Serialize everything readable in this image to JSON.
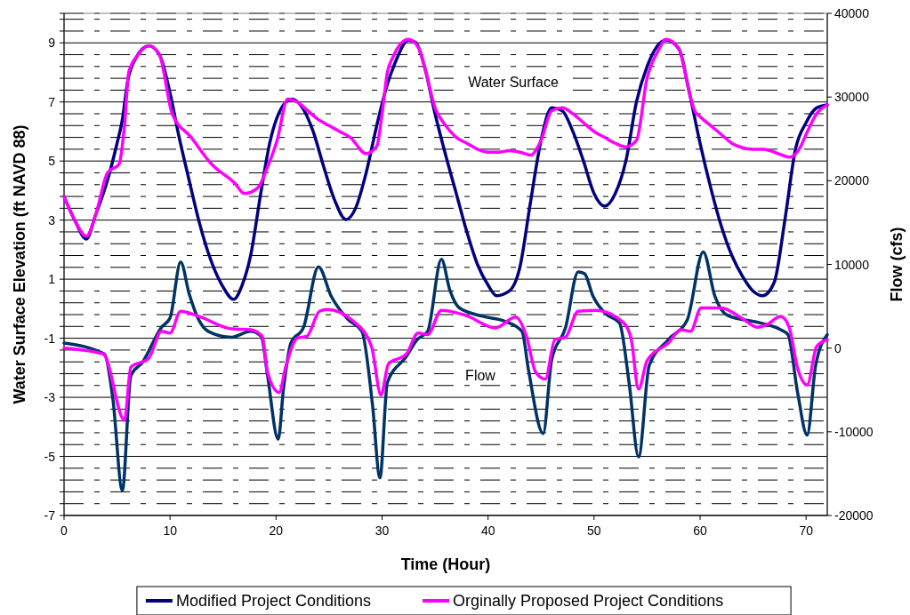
{
  "chart_data": {
    "type": "line",
    "xlabel": "Time (Hour)",
    "ylabel": "Water Surface Elevation (ft NAVD 88)",
    "y2label": "Flow (cfs)",
    "xlim": [
      0,
      72
    ],
    "xticks": [
      0,
      10,
      20,
      30,
      40,
      50,
      60,
      70
    ],
    "ylim": [
      -7,
      10
    ],
    "yticks": [
      -7,
      {
        "value": -6.6,
        "label": null
      },
      {
        "value": -6.2,
        "label": null
      },
      {
        "value": -5.8,
        "label": null
      },
      {
        "value": -5.4,
        "label": null
      },
      -5,
      {
        "value": -4.6,
        "label": null
      },
      {
        "value": -4.2,
        "label": null
      },
      {
        "value": -3.8,
        "label": null
      },
      {
        "value": -3.4,
        "label": null
      },
      -3,
      {
        "value": -2.6,
        "label": null
      },
      {
        "value": -2.2,
        "label": null
      },
      {
        "value": -1.8,
        "label": null
      },
      {
        "value": -1.4,
        "label": null
      },
      -1,
      {
        "value": -0.6,
        "label": null
      },
      {
        "value": -0.2,
        "label": null
      },
      {
        "value": 0.2,
        "label": null
      },
      {
        "value": 0.6,
        "label": null
      },
      1,
      {
        "value": 1.4,
        "label": null
      },
      {
        "value": 1.8,
        "label": null
      },
      {
        "value": 2.2,
        "label": null
      },
      {
        "value": 2.6,
        "label": null
      },
      3,
      {
        "value": 3.4,
        "label": null
      },
      {
        "value": 3.8,
        "label": null
      },
      {
        "value": 4.2,
        "label": null
      },
      {
        "value": 4.6,
        "label": null
      },
      5,
      {
        "value": 5.4,
        "label": null
      },
      {
        "value": 5.8,
        "label": null
      },
      {
        "value": 6.2,
        "label": null
      },
      {
        "value": 6.6,
        "label": null
      },
      7,
      {
        "value": 7.4,
        "label": null
      },
      {
        "value": 7.8,
        "label": null
      },
      {
        "value": 8.2,
        "label": null
      },
      {
        "value": 8.6,
        "label": null
      },
      9,
      {
        "value": 9.4,
        "label": null
      },
      {
        "value": 9.8,
        "label": null
      },
      {
        "value": 10,
        "label": null
      }
    ],
    "y2lim": [
      -20000,
      40000
    ],
    "y2ticks": [
      -20000,
      -10000,
      0,
      10000,
      20000,
      30000,
      40000
    ],
    "grid": "y",
    "legend": "bottom",
    "line_style": "solid",
    "marker": "none",
    "annotations": [
      "Water Surface",
      "Flow"
    ],
    "series": [
      {
        "name": "Modified Project Conditions",
        "color": "#000080",
        "x": [
          0,
          1,
          2.1,
          3,
          4.1,
          5,
          5.5,
          6,
          6.8,
          8,
          9,
          10,
          10.8,
          11.8,
          12.7,
          13.6,
          14.9,
          16,
          16.8,
          17.6,
          18.6,
          19.4,
          20.7,
          21.5,
          22.5,
          23.5,
          24.5,
          25.5,
          26.6,
          27.5,
          28.5,
          29.5,
          30.5,
          31.2,
          32.5,
          33.2,
          34,
          35,
          36,
          37,
          38,
          39,
          40,
          40.8,
          42,
          43,
          44,
          45,
          46,
          47,
          48,
          49,
          50,
          51,
          52,
          53,
          54,
          55,
          56.8,
          58,
          59,
          60,
          61,
          62,
          63,
          64,
          65,
          65.9,
          67,
          68,
          69,
          70,
          71,
          72
        ],
        "values": [
          3.8,
          3.0,
          2.36,
          3.2,
          4.35,
          5.6,
          6.4,
          7.7,
          8.5,
          8.9,
          8.6,
          7.3,
          5.9,
          4.35,
          3.0,
          1.9,
          0.8,
          0.32,
          0.8,
          1.8,
          4.0,
          5.6,
          6.9,
          7.1,
          6.8,
          6.0,
          4.8,
          3.7,
          3.02,
          3.4,
          4.6,
          6.2,
          7.6,
          8.3,
          9.1,
          9.0,
          8.2,
          6.6,
          5.2,
          3.9,
          2.6,
          1.5,
          0.8,
          0.44,
          0.6,
          1.4,
          3.6,
          5.7,
          6.8,
          6.7,
          6.0,
          5.0,
          3.9,
          3.47,
          3.9,
          5.0,
          7.0,
          8.2,
          9.1,
          8.8,
          7.3,
          5.6,
          4.1,
          2.8,
          1.8,
          1.1,
          0.6,
          0.44,
          0.9,
          3.0,
          5.4,
          6.3,
          6.8,
          6.9
        ]
      },
      {
        "name": "Orginally Proposed Project Conditions",
        "color": "#ff00ff",
        "x": [
          0,
          1,
          2.1,
          3,
          4.1,
          5.2,
          5.7,
          6.1,
          7,
          8,
          9,
          10.2,
          12,
          13.9,
          16.1,
          17,
          18.3,
          19.2,
          20.1,
          21.1,
          22,
          23,
          24,
          25,
          26,
          27,
          28.5,
          29.5,
          30,
          30.5,
          31,
          32.5,
          33.5,
          34,
          35,
          36,
          37,
          38,
          39,
          40,
          41,
          42,
          43,
          44,
          45,
          46,
          47,
          48,
          49,
          50,
          51,
          52,
          53,
          54,
          55,
          56,
          56.8,
          58,
          59,
          59.5,
          60,
          61,
          62,
          63,
          64,
          65,
          66,
          67,
          68.5,
          69.5,
          70,
          71,
          72
        ],
        "values": [
          3.8,
          3.0,
          2.45,
          3.2,
          4.6,
          4.9,
          6.2,
          8.0,
          8.6,
          8.9,
          8.6,
          6.6,
          5.8,
          4.9,
          4.25,
          3.9,
          4.1,
          4.8,
          5.7,
          7.1,
          7.0,
          6.7,
          6.4,
          6.2,
          6.0,
          5.8,
          5.25,
          5.5,
          6.6,
          8.0,
          8.5,
          9.12,
          8.8,
          8.2,
          6.8,
          6.2,
          5.8,
          5.6,
          5.4,
          5.3,
          5.3,
          5.35,
          5.3,
          5.2,
          5.7,
          6.7,
          6.8,
          6.6,
          6.3,
          6.0,
          5.8,
          5.6,
          5.48,
          5.7,
          7.8,
          8.7,
          9.12,
          8.8,
          7.3,
          6.7,
          6.5,
          6.2,
          5.9,
          5.6,
          5.45,
          5.4,
          5.4,
          5.3,
          5.13,
          5.5,
          5.9,
          6.6,
          6.9
        ]
      },
      {
        "color": "#003366",
        "axis": "y2",
        "x": [
          0,
          3.8,
          4.6,
          5.5,
          6.3,
          7.4,
          9.2,
          10,
          11,
          11.8,
          12.7,
          13.6,
          15.8,
          17.6,
          18.6,
          19.2,
          20.2,
          20.7,
          21.4,
          22.6,
          24,
          25.2,
          26.8,
          28.1,
          29.1,
          29.8,
          30.5,
          32.3,
          33.3,
          34.3,
          35.6,
          36.4,
          37.3,
          39.5,
          41.6,
          43.2,
          43.8,
          45.2,
          46,
          47.3,
          48.5,
          49.1,
          49.9,
          51.1,
          52.4,
          53.3,
          54.2,
          55.2,
          57,
          58.8,
          60.3,
          61.4,
          62.6,
          65.7,
          67.6,
          68.3,
          69.2,
          70.1,
          70.9,
          72
        ],
        "values": [
          600,
          -700,
          -6000,
          -17000,
          -3300,
          -1700,
          2500,
          3600,
          10300,
          6500,
          3400,
          2000,
          1300,
          2000,
          1400,
          -3300,
          -10900,
          -4900,
          600,
          2500,
          9700,
          6200,
          3400,
          2000,
          -6800,
          -15500,
          -4100,
          -1000,
          1000,
          2000,
          10600,
          6900,
          4800,
          3800,
          3200,
          2000,
          -2500,
          -10200,
          -1400,
          2400,
          9100,
          8900,
          6200,
          4100,
          3000,
          -4100,
          -13000,
          -2100,
          1000,
          3400,
          11500,
          6200,
          3900,
          3000,
          2200,
          1600,
          -5300,
          -10400,
          -2100,
          1600
        ]
      },
      {
        "color": "#ff00ff",
        "axis": "y2",
        "x": [
          0,
          3.7,
          5.7,
          6.3,
          8,
          9.2,
          10,
          11,
          12.7,
          15.8,
          17.6,
          18.7,
          19.2,
          20.3,
          20.9,
          22,
          22.9,
          24.1,
          24.8,
          27.3,
          29,
          29.9,
          30.6,
          32.3,
          33.4,
          34.3,
          35.6,
          37.9,
          40.7,
          42.6,
          43.6,
          44.5,
          45.4,
          46.3,
          47.3,
          48.5,
          50.2,
          52.8,
          53.5,
          54.2,
          55,
          57,
          58.2,
          59.1,
          60.1,
          62,
          63.9,
          65.4,
          66.3,
          67.6,
          68.4,
          69.2,
          70.1,
          71,
          72
        ],
        "values": [
          0,
          -700,
          -8600,
          -2300,
          -1200,
          2000,
          1800,
          4400,
          3800,
          2300,
          2200,
          1400,
          -2900,
          -5300,
          -2300,
          1200,
          1400,
          4400,
          4600,
          3200,
          200,
          -5600,
          -1900,
          -700,
          1800,
          1600,
          4500,
          3900,
          2400,
          3700,
          1500,
          -2900,
          -3700,
          1000,
          1300,
          4400,
          4500,
          3000,
          1100,
          -4900,
          -1500,
          600,
          2200,
          2000,
          4800,
          4800,
          3600,
          2500,
          2800,
          3800,
          2500,
          -2400,
          -4400,
          200,
          1000
        ]
      }
    ]
  }
}
